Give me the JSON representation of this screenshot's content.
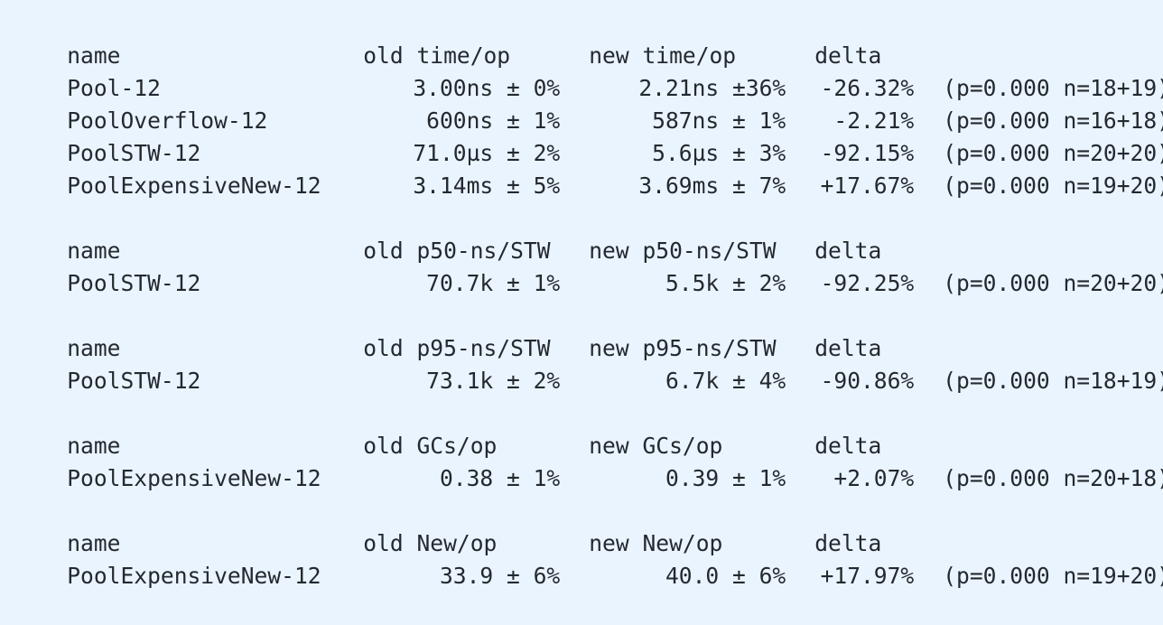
{
  "sections": [
    {
      "header": {
        "name": "name",
        "old": "old time/op",
        "new": "new time/op",
        "delta": "delta"
      },
      "rows": [
        {
          "name": "Pool-12",
          "old": "3.00ns ± 0%",
          "new": "2.21ns ±36%",
          "delta": "-26.32%",
          "stat": "(p=0.000 n=18+19)"
        },
        {
          "name": "PoolOverflow-12",
          "old": "600ns ± 1%",
          "new": "587ns ± 1%",
          "delta": "-2.21%",
          "stat": "(p=0.000 n=16+18)"
        },
        {
          "name": "PoolSTW-12",
          "old": "71.0µs ± 2%",
          "new": "5.6µs ± 3%",
          "delta": "-92.15%",
          "stat": "(p=0.000 n=20+20)"
        },
        {
          "name": "PoolExpensiveNew-12",
          "old": "3.14ms ± 5%",
          "new": "3.69ms ± 7%",
          "delta": "+17.67%",
          "stat": "(p=0.000 n=19+20)"
        }
      ]
    },
    {
      "header": {
        "name": "name",
        "old": "old p50-ns/STW",
        "new": "new p50-ns/STW",
        "delta": "delta"
      },
      "rows": [
        {
          "name": "PoolSTW-12",
          "old": "70.7k ± 1%",
          "new": "5.5k ± 2%",
          "delta": "-92.25%",
          "stat": "(p=0.000 n=20+20)"
        }
      ]
    },
    {
      "header": {
        "name": "name",
        "old": "old p95-ns/STW",
        "new": "new p95-ns/STW",
        "delta": "delta"
      },
      "rows": [
        {
          "name": "PoolSTW-12",
          "old": "73.1k ± 2%",
          "new": "6.7k ± 4%",
          "delta": "-90.86%",
          "stat": "(p=0.000 n=18+19)"
        }
      ]
    },
    {
      "header": {
        "name": "name",
        "old": "old GCs/op",
        "new": "new GCs/op",
        "delta": "delta"
      },
      "rows": [
        {
          "name": "PoolExpensiveNew-12",
          "old": "0.38 ± 1%",
          "new": "0.39 ± 1%",
          "delta": "+2.07%",
          "stat": "(p=0.000 n=20+18)"
        }
      ]
    },
    {
      "header": {
        "name": "name",
        "old": "old New/op",
        "new": "new New/op",
        "delta": "delta"
      },
      "rows": [
        {
          "name": "PoolExpensiveNew-12",
          "old": "33.9 ± 6%",
          "new": "40.0 ± 6%",
          "delta": "+17.97%",
          "stat": "(p=0.000 n=19+20)"
        }
      ]
    }
  ]
}
